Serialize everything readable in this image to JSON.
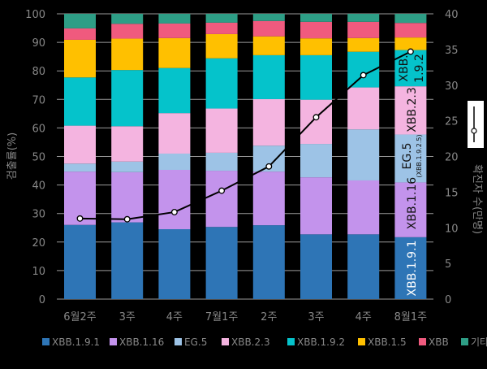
{
  "chart_data": {
    "type": "bar",
    "stacked": true,
    "categories": [
      "6월2주",
      "3주",
      "4주",
      "7월1주",
      "2주",
      "3주",
      "4주",
      "8월1주"
    ],
    "ylabel": "검출률(%)",
    "ylim": [
      0,
      100
    ],
    "yticks": [
      0,
      10,
      20,
      30,
      40,
      50,
      60,
      70,
      80,
      90,
      100
    ],
    "y2label": "확진자 수(만명)",
    "y2lim": [
      0,
      40
    ],
    "y2ticks": [
      0,
      5,
      10,
      15,
      20,
      25,
      30,
      35,
      40
    ],
    "grid": true,
    "legend_position": "bottom",
    "series": [
      {
        "name": "XBB.1.9.1",
        "color": "#2e75b6",
        "values": [
          26.0,
          26.9,
          24.5,
          25.3,
          25.9,
          22.7,
          22.7,
          21.7
        ]
      },
      {
        "name": "XBB.1.16",
        "color": "#c393ec",
        "values": [
          18.7,
          17.6,
          20.8,
          19.7,
          18.8,
          20.0,
          18.9,
          19.2
        ]
      },
      {
        "name": "EG.5",
        "color": "#9dc3e6",
        "values": [
          2.8,
          3.7,
          5.7,
          6.3,
          9.1,
          11.7,
          17.9,
          16.8
        ]
      },
      {
        "name": "XBB.2.3",
        "color": "#f4b4e0",
        "values": [
          13.3,
          12.4,
          14.2,
          15.5,
          16.3,
          15.5,
          14.7,
          16.9
        ]
      },
      {
        "name": "XBB.1.9.2",
        "color": "#05c3cb",
        "values": [
          16.9,
          19.7,
          15.8,
          17.6,
          15.4,
          15.6,
          12.5,
          12.7
        ]
      },
      {
        "name": "XBB.1.5",
        "color": "#ffc000",
        "values": [
          13.2,
          11.0,
          10.5,
          8.5,
          6.6,
          5.9,
          4.8,
          4.4
        ]
      },
      {
        "name": "XBB",
        "color": "#f05a7e",
        "values": [
          4.0,
          5.2,
          5.1,
          4.0,
          5.4,
          5.8,
          5.7,
          5.1
        ]
      },
      {
        "name": "기타",
        "color": "#2e9e86",
        "values": [
          5.1,
          3.5,
          3.4,
          3.1,
          2.5,
          2.8,
          2.8,
          3.2
        ]
      }
    ],
    "line": {
      "name": "확진자 수(만명)",
      "axis": "right",
      "values": [
        11.3,
        11.2,
        12.2,
        15.2,
        18.6,
        25.5,
        31.4,
        34.7
      ]
    },
    "annotations": {
      "xbb191": "XBB.1.9.1",
      "xbb116": "XBB.1.16",
      "eg5": "EG.5",
      "eg5_sub": "(XBB.1.9.2.5)",
      "xbb23": "XBB.2.3",
      "xbb192_a": "XBB.",
      "xbb192_b": "1.9.2"
    }
  }
}
